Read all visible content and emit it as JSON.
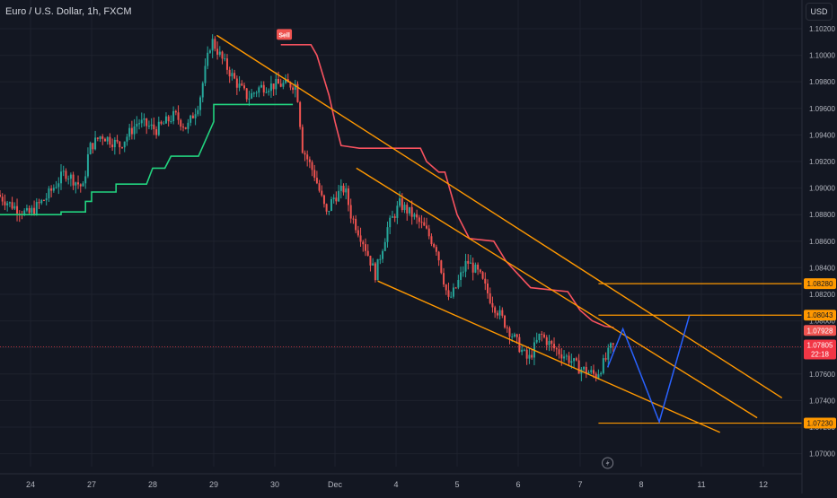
{
  "header": {
    "symbol_title": "Euro / U.S. Dollar, 1h, FXCM",
    "currency_button": "USD"
  },
  "colors": {
    "background": "#131722",
    "grid": "#1e222d",
    "up_candle": "#26a69a",
    "down_candle": "#ef5350",
    "support_line": "#22d37f",
    "resistance_line": "#f7525f",
    "channel": "#ff9800",
    "projection": "#2962ff",
    "current_price": "#f23645"
  },
  "chart_data": {
    "type": "candlestick",
    "title": "Euro / U.S. Dollar, 1h, FXCM",
    "ylim": [
      1.0692,
      1.1022
    ],
    "y_ticks": [
      "1.10200",
      "1.10000",
      "1.09800",
      "1.09600",
      "1.09400",
      "1.09200",
      "1.09000",
      "1.08800",
      "1.08600",
      "1.08400",
      "1.08200",
      "1.08000",
      "1.07800",
      "1.07600",
      "1.07400",
      "1.07200",
      "1.07000"
    ],
    "x_ticks": [
      {
        "label": "24",
        "x": 0
      },
      {
        "label": "27",
        "x": 1
      },
      {
        "label": "28",
        "x": 2
      },
      {
        "label": "29",
        "x": 3
      },
      {
        "label": "30",
        "x": 4
      },
      {
        "label": "Dec",
        "x": 5
      },
      {
        "label": "4",
        "x": 6
      },
      {
        "label": "5",
        "x": 7
      },
      {
        "label": "6",
        "x": 8
      },
      {
        "label": "7",
        "x": 9
      },
      {
        "label": "8",
        "x": 10
      },
      {
        "label": "11",
        "x": 11
      },
      {
        "label": "12",
        "x": 12
      }
    ],
    "grid": true,
    "price_anchors": [
      [
        -0.5,
        1.0895
      ],
      [
        -0.3,
        1.0888
      ],
      [
        0.0,
        1.088
      ],
      [
        0.3,
        1.0893
      ],
      [
        0.6,
        1.0912
      ],
      [
        0.9,
        1.09
      ],
      [
        1.0,
        1.093
      ],
      [
        1.2,
        1.094
      ],
      [
        1.5,
        1.0932
      ],
      [
        1.8,
        1.095
      ],
      [
        2.1,
        1.0944
      ],
      [
        2.4,
        1.0955
      ],
      [
        2.6,
        1.0945
      ],
      [
        2.8,
        1.0965
      ],
      [
        3.0,
        1.1012
      ],
      [
        3.2,
        1.0995
      ],
      [
        3.4,
        1.098
      ],
      [
        3.6,
        1.0968
      ],
      [
        3.8,
        1.0976
      ],
      [
        4.1,
        1.0978
      ],
      [
        4.4,
        1.0978
      ],
      [
        4.5,
        1.093
      ],
      [
        4.7,
        1.091
      ],
      [
        4.9,
        1.088
      ],
      [
        5.0,
        1.0892
      ],
      [
        5.2,
        1.09
      ],
      [
        5.3,
        1.088
      ],
      [
        5.5,
        1.086
      ],
      [
        5.7,
        1.0835
      ],
      [
        5.9,
        1.087
      ],
      [
        6.1,
        1.0888
      ],
      [
        6.3,
        1.088
      ],
      [
        6.5,
        1.087
      ],
      [
        6.7,
        1.0855
      ],
      [
        6.9,
        1.0815
      ],
      [
        7.0,
        1.0823
      ],
      [
        7.2,
        1.0845
      ],
      [
        7.4,
        1.0835
      ],
      [
        7.6,
        1.0815
      ],
      [
        7.8,
        1.08
      ],
      [
        8.0,
        1.0785
      ],
      [
        8.2,
        1.077
      ],
      [
        8.4,
        1.079
      ],
      [
        8.6,
        1.078
      ],
      [
        8.9,
        1.077
      ],
      [
        9.0,
        1.0765
      ],
      [
        9.3,
        1.0759
      ],
      [
        9.45,
        1.077
      ],
      [
        9.55,
        1.07805
      ]
    ],
    "support_line": [
      [
        -0.5,
        1.088
      ],
      [
        0.5,
        1.088
      ],
      [
        0.5,
        1.0882
      ],
      [
        0.9,
        1.0882
      ],
      [
        0.9,
        1.089
      ],
      [
        1.0,
        1.089
      ],
      [
        1.0,
        1.0897
      ],
      [
        1.4,
        1.0897
      ],
      [
        1.4,
        1.0903
      ],
      [
        1.9,
        1.0903
      ],
      [
        2.0,
        1.0915
      ],
      [
        2.2,
        1.0915
      ],
      [
        2.3,
        1.0924
      ],
      [
        2.6,
        1.0924
      ],
      [
        2.75,
        1.0924
      ],
      [
        3.0,
        1.095
      ],
      [
        3.0,
        1.0963
      ],
      [
        4.3,
        1.0963
      ]
    ],
    "resistance_line": [
      [
        4.1,
        1.1008
      ],
      [
        4.6,
        1.1008
      ],
      [
        4.7,
        1.1
      ],
      [
        4.9,
        1.097
      ],
      [
        5.0,
        1.095
      ],
      [
        5.1,
        1.0932
      ],
      [
        5.4,
        1.093
      ],
      [
        5.6,
        1.093
      ],
      [
        5.7,
        1.093
      ],
      [
        6.3,
        1.093
      ],
      [
        6.4,
        1.093
      ],
      [
        6.5,
        1.092
      ],
      [
        6.7,
        1.0912
      ],
      [
        6.8,
        1.0912
      ],
      [
        7.0,
        1.088
      ],
      [
        7.2,
        1.0862
      ],
      [
        7.6,
        1.086
      ],
      [
        7.8,
        1.0845
      ],
      [
        8.0,
        1.0835
      ],
      [
        8.2,
        1.0825
      ],
      [
        8.6,
        1.0823
      ],
      [
        8.8,
        1.0822
      ],
      [
        9.0,
        1.0808
      ],
      [
        9.2,
        1.08
      ],
      [
        9.4,
        1.0796
      ],
      [
        9.55,
        1.0795
      ]
    ],
    "upper_channel": [
      [
        3.05,
        1.1015
      ],
      [
        12.3,
        1.0742
      ]
    ],
    "middle_channel": [
      [
        5.35,
        1.0915
      ],
      [
        11.9,
        1.0727
      ]
    ],
    "lower_channel": [
      [
        5.7,
        1.083
      ],
      [
        11.3,
        1.0716
      ]
    ],
    "horizontal_levels": [
      1.0828,
      1.08043,
      1.0723
    ],
    "projection_path": [
      [
        9.45,
        1.0765
      ],
      [
        9.7,
        1.0794
      ],
      [
        10.3,
        1.0724
      ],
      [
        10.8,
        1.0804
      ]
    ],
    "sell_signal": {
      "label": "Sell",
      "x": 4.15,
      "y": 1.1015
    },
    "price_labels": [
      {
        "value": "1.08280",
        "y": 1.0828,
        "kind": "level"
      },
      {
        "value": "1.08043",
        "y": 1.08043,
        "kind": "level"
      },
      {
        "value": "1.07928",
        "y": 1.07928,
        "kind": "resistance"
      },
      {
        "value": "1.07805",
        "y": 1.07805,
        "kind": "current",
        "countdown": "22:18"
      },
      {
        "value": "1.07230",
        "y": 1.0723,
        "kind": "level"
      }
    ],
    "current_price": 1.07805,
    "lightning_icon_x": 9.45
  }
}
